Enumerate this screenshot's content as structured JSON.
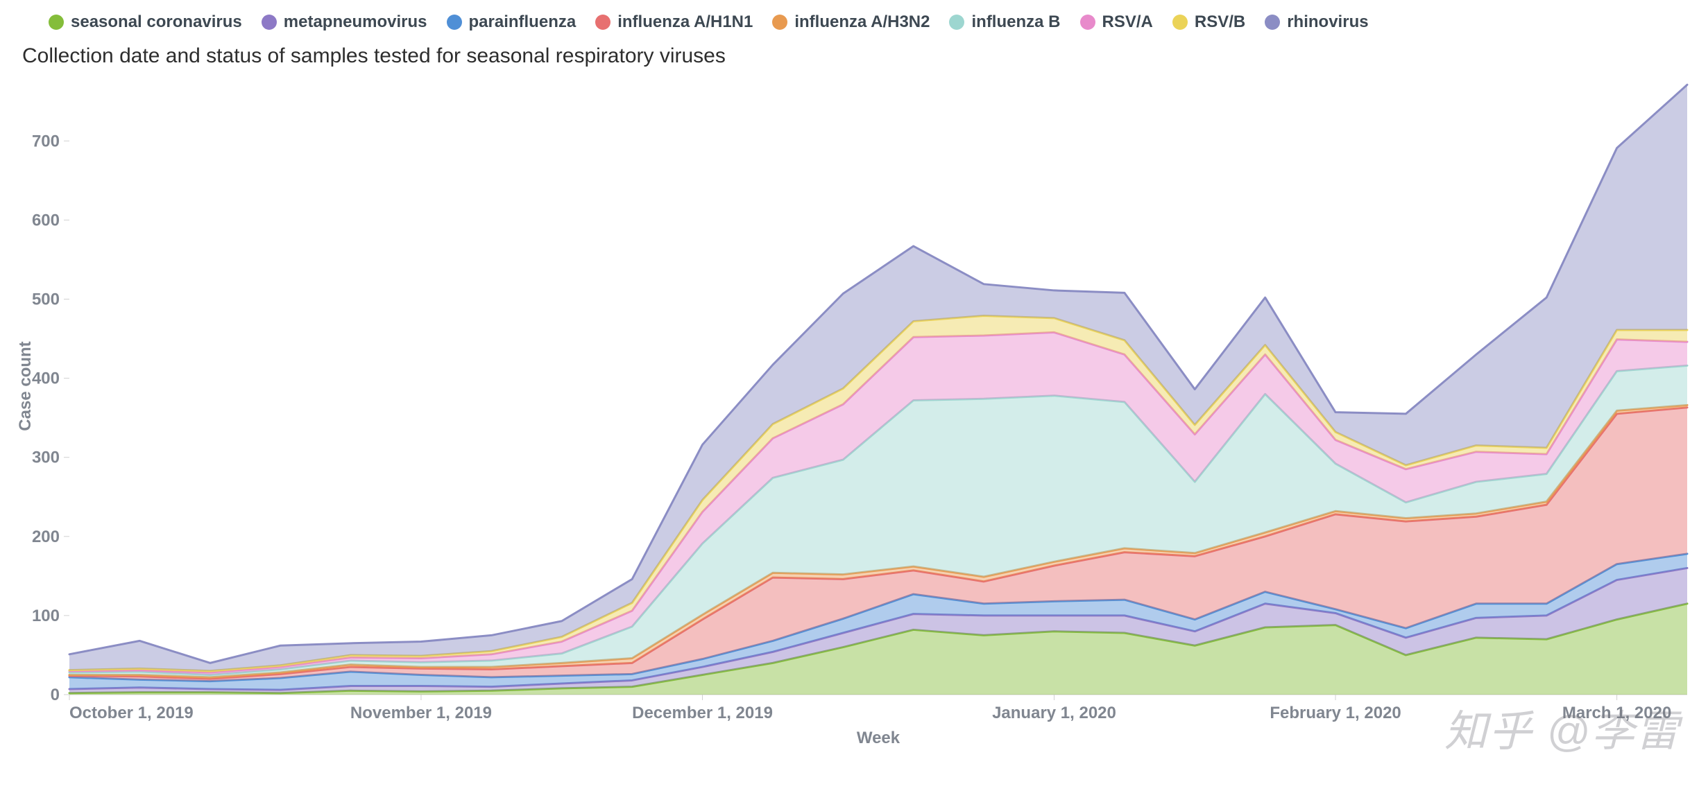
{
  "chart": {
    "type": "stacked-area",
    "subtitle": "Collection date and status of samples tested for seasonal respiratory viruses",
    "x_axis": {
      "title": "Week",
      "labels": [
        "October 1, 2019",
        "November 1, 2019",
        "December 1, 2019",
        "January 1, 2020",
        "February 1, 2020",
        "March 1, 2020"
      ],
      "label_positions": [
        0,
        5,
        9,
        14,
        18,
        22
      ],
      "n_points": 24,
      "title_fontsize": 24,
      "label_fontsize": 24,
      "label_color": "#808690"
    },
    "y_axis": {
      "title": "Case count",
      "min": 0,
      "max": 780,
      "ticks": [
        0,
        100,
        200,
        300,
        400,
        500,
        600,
        700
      ],
      "title_fontsize": 24,
      "label_fontsize": 24,
      "label_color": "#808690"
    },
    "background_color": "#ffffff",
    "grid_color": "#d0d0d0",
    "line_width": 3,
    "area_opacity": 0.45,
    "series": [
      {
        "name": "seasonal coronavirus",
        "color": "#84bd3a",
        "values": [
          2,
          3,
          3,
          2,
          5,
          4,
          5,
          8,
          10,
          25,
          40,
          60,
          82,
          75,
          80,
          78,
          62,
          85,
          88,
          50,
          72,
          70,
          95,
          115
        ]
      },
      {
        "name": "metapneumovirus",
        "color": "#8d79c6",
        "values": [
          5,
          6,
          4,
          4,
          6,
          7,
          5,
          6,
          8,
          10,
          14,
          18,
          20,
          25,
          20,
          22,
          18,
          30,
          15,
          22,
          25,
          30,
          50,
          45
        ]
      },
      {
        "name": "parainfluenza",
        "color": "#4f8fd6",
        "values": [
          15,
          10,
          10,
          15,
          18,
          14,
          12,
          10,
          8,
          10,
          14,
          18,
          25,
          15,
          18,
          20,
          15,
          15,
          5,
          12,
          18,
          15,
          20,
          18
        ]
      },
      {
        "name": "influenza A/H1N1",
        "color": "#e77070",
        "values": [
          2,
          4,
          3,
          5,
          6,
          8,
          10,
          12,
          14,
          50,
          80,
          50,
          30,
          28,
          45,
          60,
          80,
          70,
          120,
          135,
          110,
          125,
          190,
          185
        ]
      },
      {
        "name": "influenza A/H3N2",
        "color": "#e89a50",
        "values": [
          1,
          2,
          2,
          2,
          3,
          2,
          3,
          4,
          6,
          6,
          6,
          6,
          5,
          6,
          5,
          5,
          4,
          5,
          4,
          4,
          4,
          4,
          4,
          3
        ]
      },
      {
        "name": "influenza B",
        "color": "#9dd6d0",
        "values": [
          3,
          4,
          3,
          4,
          5,
          6,
          8,
          12,
          40,
          90,
          120,
          145,
          210,
          225,
          210,
          185,
          90,
          175,
          60,
          20,
          40,
          35,
          50,
          50
        ]
      },
      {
        "name": "RSV/A",
        "color": "#e88acb",
        "values": [
          2,
          2,
          3,
          3,
          4,
          5,
          8,
          15,
          20,
          40,
          50,
          70,
          80,
          80,
          80,
          60,
          60,
          50,
          30,
          42,
          38,
          25,
          40,
          30
        ]
      },
      {
        "name": "RSV/B",
        "color": "#ebd358",
        "values": [
          1,
          2,
          2,
          2,
          3,
          3,
          4,
          6,
          10,
          15,
          18,
          20,
          20,
          25,
          18,
          18,
          12,
          12,
          10,
          5,
          8,
          8,
          12,
          15
        ]
      },
      {
        "name": "rhinovirus",
        "color": "#8b8dc4",
        "values": [
          20,
          35,
          10,
          25,
          15,
          18,
          20,
          20,
          30,
          70,
          75,
          120,
          95,
          40,
          35,
          60,
          45,
          60,
          25,
          65,
          115,
          190,
          230,
          310
        ]
      }
    ]
  },
  "watermark": "知乎 @李雷"
}
